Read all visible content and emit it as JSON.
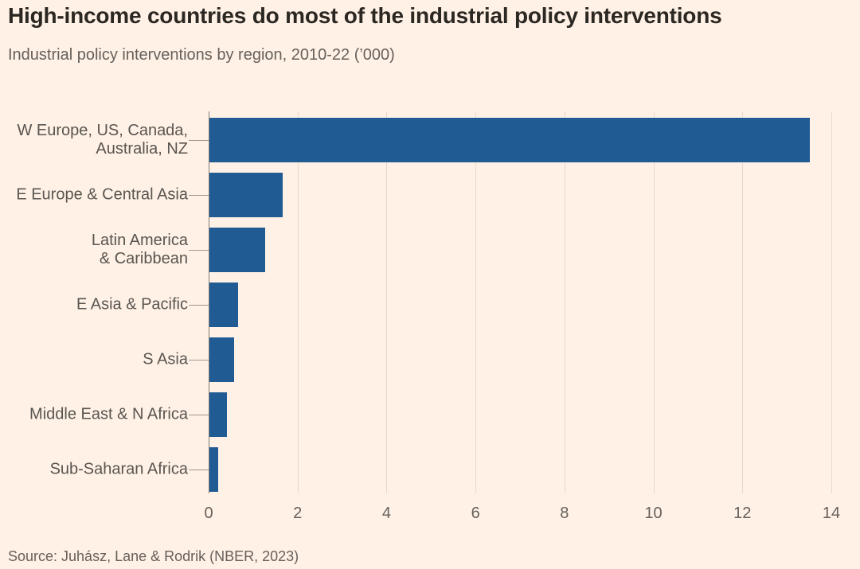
{
  "header": {
    "title": "High-income countries do most of the industrial policy interventions",
    "subtitle": "Industrial policy interventions by region, 2010-22 (’000)"
  },
  "footer": {
    "source": "Source: Juhász, Lane & Rodrik (NBER, 2023)"
  },
  "colors": {
    "background": "#fff1e5",
    "bar": "#205b94",
    "gridline": "#ead9ca",
    "axis": "#827c76",
    "tick": "#a09892",
    "title_text": "#2b2722",
    "muted_text": "#66605c"
  },
  "chart_data": {
    "type": "bar",
    "orientation": "horizontal",
    "title": "High-income countries do most of the industrial policy interventions",
    "subtitle": "Industrial policy interventions by region, 2010-22 (’000)",
    "categories": [
      "W Europe, US, Canada,\nAustralia, NZ",
      "E Europe & Central Asia",
      "Latin America\n& Caribbean",
      "E Asia & Pacific",
      "S Asia",
      "Middle East & N Africa",
      "Sub-Saharan Africa"
    ],
    "values": [
      13.5,
      1.65,
      1.25,
      0.65,
      0.55,
      0.4,
      0.2
    ],
    "unit": "thousands of interventions",
    "xlabel": "",
    "ylabel": "",
    "xlim": [
      0,
      14
    ],
    "x_ticks": [
      0,
      2,
      4,
      6,
      8,
      10,
      12,
      14
    ],
    "grid": "vertical",
    "legend": "none",
    "source": "Source: Juhász, Lane & Rodrik (NBER, 2023)"
  }
}
